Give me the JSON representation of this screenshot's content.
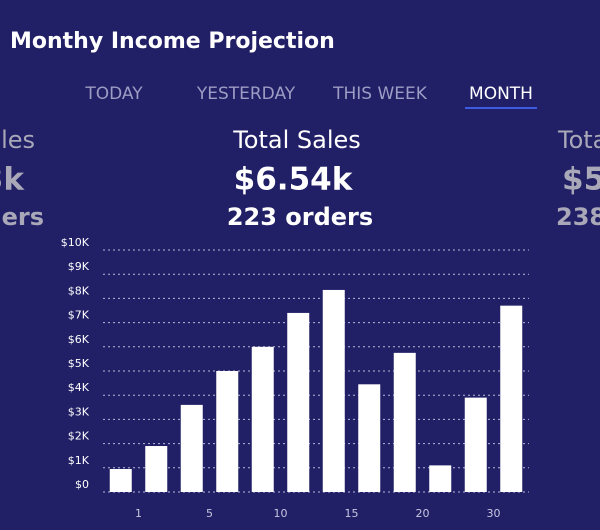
{
  "header": {
    "title": "Monthy Income Projection"
  },
  "tabs": {
    "items": [
      "TODAY",
      "YESTERDAY",
      "THIS WEEK",
      "MONTH"
    ],
    "active": 3
  },
  "cards": [
    {
      "title": "les",
      "amount": "3k",
      "orders": "ders"
    },
    {
      "title": "Total Sales",
      "amount": "$6.54k",
      "orders": "223 orders"
    },
    {
      "title": "Tota",
      "amount": "$5",
      "orders": "238"
    }
  ],
  "chart_data": {
    "type": "bar",
    "color": "#ffffff",
    "x_labels": [
      "1",
      "5",
      "10",
      "15",
      "20",
      "30"
    ],
    "values": [
      950,
      1900,
      3600,
      5000,
      6000,
      7400,
      8350,
      4450,
      5750,
      1100,
      3900,
      7700
    ],
    "ylim": [
      0,
      10000
    ],
    "yticks": [
      {
        "value": 0,
        "label": "$0"
      },
      {
        "value": 1000,
        "label": "$1K"
      },
      {
        "value": 2000,
        "label": "$2K"
      },
      {
        "value": 3000,
        "label": "$3K"
      },
      {
        "value": 4000,
        "label": "$4K"
      },
      {
        "value": 5000,
        "label": "$5K"
      },
      {
        "value": 6000,
        "label": "$6K"
      },
      {
        "value": 7000,
        "label": "$7K"
      },
      {
        "value": 8000,
        "label": "$8K"
      },
      {
        "value": 9000,
        "label": "$9K"
      },
      {
        "value": 10000,
        "label": "$10K"
      }
    ],
    "grid": true
  }
}
